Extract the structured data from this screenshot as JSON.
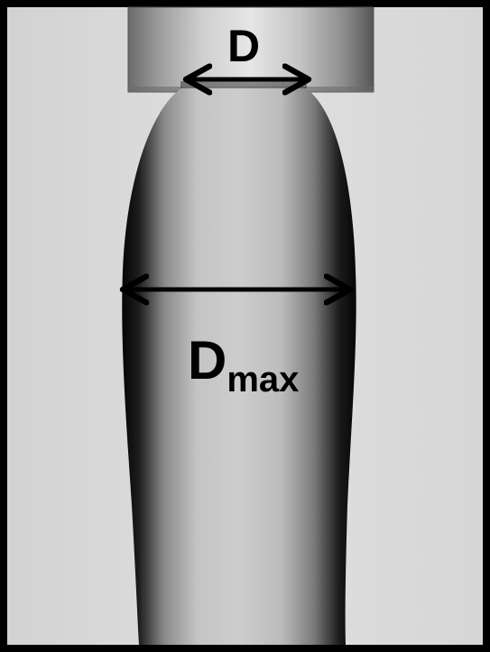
{
  "labels": {
    "nozzle_diameter": "D",
    "max_diameter_main": "D",
    "max_diameter_subscript": "max"
  },
  "colors": {
    "background": "#dcdcdc",
    "frame": "#000000",
    "jet_edge": "#0a0a0a",
    "jet_interior": "#c8c8c8",
    "nozzle": "#a8a8a8",
    "arrow": "#000000"
  }
}
